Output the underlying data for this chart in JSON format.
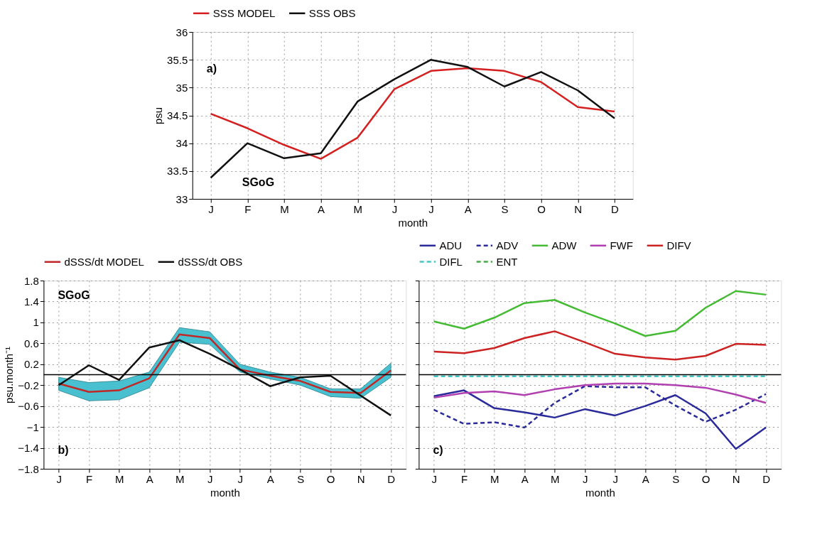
{
  "chart_data": [
    {
      "type": "line",
      "xlabel": "month",
      "ylabel": "psu",
      "annotations": [
        "a)",
        "SGoG"
      ],
      "categories": [
        "J",
        "F",
        "M",
        "A",
        "M",
        "J",
        "J",
        "A",
        "S",
        "O",
        "N",
        "D"
      ],
      "ylim": [
        33,
        36
      ],
      "yticks": [
        33,
        33.5,
        34,
        34.5,
        35,
        35.5,
        36
      ],
      "grid": true,
      "legend": "top",
      "line_style": "solid",
      "series": [
        {
          "name": "SSS MODEL",
          "color": "#d42020",
          "values": [
            34.53,
            34.27,
            33.97,
            33.72,
            34.1,
            34.97,
            35.3,
            35.35,
            35.3,
            35.1,
            34.65,
            34.57
          ]
        },
        {
          "name": "SSS OBS",
          "color": "#111111",
          "values": [
            33.38,
            34.0,
            33.73,
            33.82,
            34.75,
            35.15,
            35.5,
            35.37,
            35.02,
            35.28,
            34.95,
            34.45
          ]
        }
      ]
    },
    {
      "type": "line",
      "xlabel": "month",
      "ylabel": "psu.month⁻¹",
      "annotations": [
        "SGoG",
        "b)"
      ],
      "categories": [
        "J",
        "F",
        "M",
        "A",
        "M",
        "J",
        "J",
        "A",
        "S",
        "O",
        "N",
        "D"
      ],
      "ylim": [
        -1.8,
        1.8
      ],
      "yticks": [
        -1.8,
        -1.4,
        -1,
        -0.6,
        -0.2,
        0.2,
        0.6,
        1,
        1.4,
        1.8
      ],
      "grid": true,
      "legend": "top",
      "line_style": "solid",
      "ref_lines": [
        {
          "axis": "y",
          "value": 0,
          "color": "#000000"
        }
      ],
      "series": [
        {
          "name": "dSSS/dt MODEL",
          "color": "#c02828",
          "values": [
            -0.17,
            -0.33,
            -0.3,
            -0.07,
            0.77,
            0.7,
            0.1,
            -0.02,
            -0.12,
            -0.33,
            -0.35,
            0.08
          ],
          "lower": [
            -0.3,
            -0.5,
            -0.48,
            -0.25,
            0.62,
            0.58,
            0.05,
            -0.08,
            -0.2,
            -0.42,
            -0.45,
            -0.05
          ],
          "upper": [
            -0.05,
            -0.15,
            -0.12,
            0.05,
            0.9,
            0.82,
            0.2,
            0.05,
            -0.05,
            -0.27,
            -0.27,
            0.22
          ]
        },
        {
          "name": "dSSS/dt OBS",
          "color": "#111111",
          "values": [
            -0.2,
            0.18,
            -0.1,
            0.52,
            0.66,
            0.4,
            0.1,
            -0.22,
            -0.05,
            -0.02,
            -0.4,
            -0.78
          ]
        }
      ]
    },
    {
      "type": "line",
      "xlabel": "month",
      "annotations": [
        "c)"
      ],
      "tick_labels": "x",
      "categories": [
        "J",
        "F",
        "M",
        "A",
        "M",
        "J",
        "J",
        "A",
        "S",
        "O",
        "N",
        "D"
      ],
      "ylim": [
        -1.8,
        1.8
      ],
      "yticks": [
        -1.8,
        -1.4,
        -1,
        -0.6,
        -0.2,
        0.2,
        0.6,
        1,
        1.4,
        1.8
      ],
      "grid": true,
      "legend": "top",
      "ref_lines": [
        {
          "axis": "y",
          "value": 0,
          "color": "#000000"
        }
      ],
      "series": [
        {
          "name": "ADU",
          "color": "#2a2a9a",
          "line_style": "solid",
          "values": [
            -0.41,
            -0.3,
            -0.64,
            -0.72,
            -0.82,
            -0.66,
            -0.78,
            -0.6,
            -0.39,
            -0.74,
            -1.42,
            -1.01
          ]
        },
        {
          "name": "ADV",
          "color": "#2a2a9a",
          "line_style": "dashed",
          "values": [
            -0.67,
            -0.94,
            -0.91,
            -1.01,
            -0.54,
            -0.22,
            -0.24,
            -0.24,
            -0.59,
            -0.9,
            -0.67,
            -0.37
          ]
        },
        {
          "name": "ADW",
          "color": "#44bb33",
          "line_style": "solid",
          "values": [
            1.02,
            0.88,
            1.09,
            1.37,
            1.43,
            1.19,
            0.98,
            0.74,
            0.84,
            1.28,
            1.6,
            1.53
          ]
        },
        {
          "name": "FWF",
          "color": "#b040b0",
          "line_style": "solid",
          "values": [
            -0.44,
            -0.35,
            -0.32,
            -0.39,
            -0.28,
            -0.2,
            -0.17,
            -0.17,
            -0.2,
            -0.25,
            -0.38,
            -0.54
          ]
        },
        {
          "name": "DIFV",
          "color": "#cc2222",
          "line_style": "solid",
          "values": [
            0.44,
            0.41,
            0.51,
            0.7,
            0.83,
            0.62,
            0.4,
            0.33,
            0.29,
            0.36,
            0.59,
            0.57
          ]
        },
        {
          "name": "DIFL",
          "color": "#40c8c8",
          "line_style": "dashed",
          "values": [
            -0.03,
            -0.03,
            -0.03,
            -0.03,
            -0.03,
            -0.03,
            -0.03,
            -0.03,
            -0.03,
            -0.03,
            -0.03,
            -0.03
          ]
        },
        {
          "name": "ENT",
          "color": "#44aa44",
          "line_style": "dashed",
          "values": [
            null,
            null,
            null,
            null,
            null,
            null,
            null,
            null,
            null,
            null,
            null,
            null
          ]
        }
      ]
    }
  ]
}
